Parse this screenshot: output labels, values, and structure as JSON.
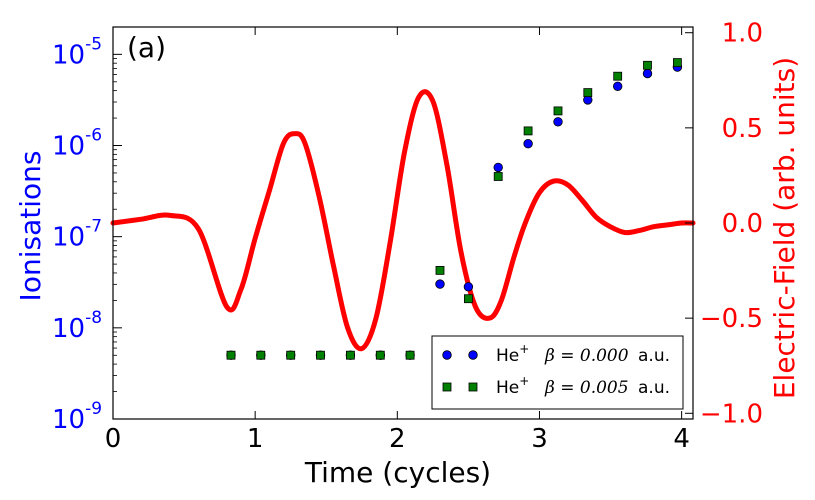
{
  "chart_data": {
    "type": "scatter",
    "panel_label": "(a)",
    "xlabel": "Time (cycles)",
    "ylabel_left": "Ionisations",
    "ylabel_right": "Electric-Field (arb. units)",
    "xlim": [
      0,
      4.08
    ],
    "ylim_left_log10": [
      -9,
      -4.7
    ],
    "ylim_right": [
      -1.03,
      1.03
    ],
    "x_ticks": [
      0,
      1,
      2,
      3,
      4
    ],
    "x_tick_labels": [
      "0",
      "1",
      "2",
      "3",
      "4"
    ],
    "y_left_ticks_log10": [
      -9,
      -8,
      -7,
      -6,
      -5
    ],
    "y_left_tick_bases": [
      "10",
      "10",
      "10",
      "10",
      "10"
    ],
    "y_left_tick_exps": [
      "-9",
      "-8",
      "-7",
      "-6",
      "-5"
    ],
    "y_right_ticks": [
      -1.0,
      -0.5,
      0.0,
      0.5,
      1.0
    ],
    "y_right_tick_labels": [
      "−1.0",
      "−0.5",
      "0.0",
      "0.5",
      "1.0"
    ],
    "colors": {
      "left_axis": "#0000ff",
      "right_axis": "#ff0000",
      "field": "#ff0000",
      "s1": "#0000ff",
      "s2": "#008000"
    },
    "series": [
      {
        "name": "He+ β=0.000 a.u.",
        "marker": "circle",
        "x": [
          0.83,
          1.04,
          1.25,
          1.46,
          1.67,
          1.88,
          2.09,
          2.3,
          2.5,
          2.71,
          2.92,
          3.13,
          3.34,
          3.55,
          3.76,
          3.97
        ],
        "log10_y": [
          -8.3,
          -8.3,
          -8.3,
          -8.3,
          -8.3,
          -8.3,
          -8.3,
          -7.52,
          -7.55,
          -6.24,
          -5.98,
          -5.74,
          -5.5,
          -5.35,
          -5.21,
          -5.14
        ]
      },
      {
        "name": "He+ β=0.005 a.u.",
        "marker": "square",
        "x": [
          0.83,
          1.04,
          1.25,
          1.46,
          1.67,
          1.88,
          2.09,
          2.3,
          2.5,
          2.71,
          2.92,
          3.13,
          3.34,
          3.55,
          3.76,
          3.97
        ],
        "log10_y": [
          -8.3,
          -8.3,
          -8.3,
          -8.3,
          -8.3,
          -8.3,
          -8.3,
          -7.37,
          -7.68,
          -6.34,
          -5.84,
          -5.62,
          -5.42,
          -5.24,
          -5.12,
          -5.09
        ]
      }
    ],
    "electric_field": {
      "name": "Electric-Field",
      "x": [
        0,
        0.2,
        0.4,
        0.6,
        0.8,
        0.9,
        1.0,
        1.1,
        1.2,
        1.28,
        1.35,
        1.45,
        1.55,
        1.65,
        1.75,
        1.85,
        1.95,
        2.05,
        2.15,
        2.25,
        2.35,
        2.45,
        2.55,
        2.65,
        2.73,
        2.82,
        2.9,
        3.0,
        3.1,
        3.2,
        3.3,
        3.4,
        3.5,
        3.6,
        3.7,
        3.8,
        3.9,
        4.0,
        4.08
      ],
      "y": [
        0.0,
        0.02,
        0.04,
        -0.03,
        -0.44,
        -0.35,
        -0.08,
        0.17,
        0.42,
        0.47,
        0.42,
        0.14,
        -0.22,
        -0.55,
        -0.66,
        -0.5,
        -0.1,
        0.37,
        0.66,
        0.64,
        0.3,
        -0.16,
        -0.44,
        -0.5,
        -0.41,
        -0.18,
        0.0,
        0.16,
        0.22,
        0.2,
        0.12,
        0.03,
        -0.02,
        -0.05,
        -0.04,
        -0.02,
        -0.01,
        0.0,
        0.0
      ]
    },
    "legend": {
      "placement": "lower-right",
      "entries": [
        {
          "label_text": "He",
          "label_sup": "+",
          "beta_label": "β = 0.000",
          "unit": "a.u."
        },
        {
          "label_text": "He",
          "label_sup": "+",
          "beta_label": "β = 0.005",
          "unit": "a.u."
        }
      ]
    }
  }
}
